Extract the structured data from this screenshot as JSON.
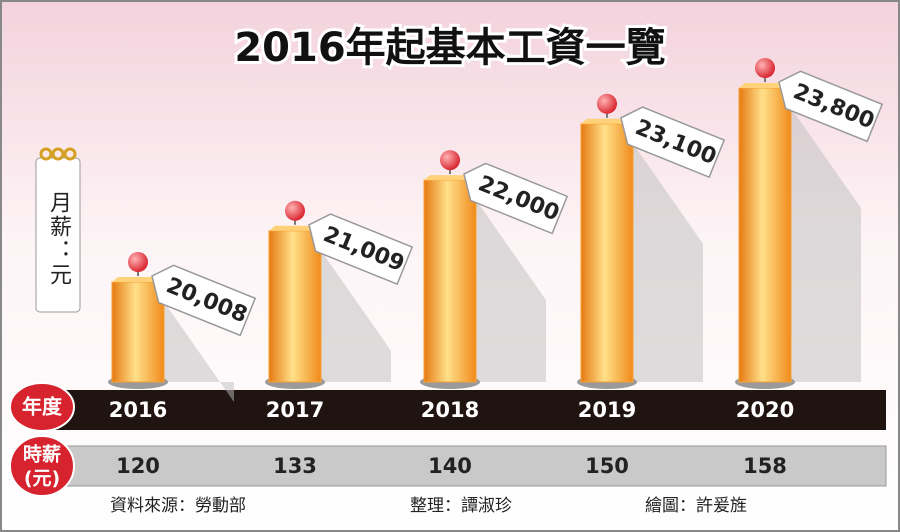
{
  "chart_data": {
    "type": "bar",
    "title": "2016年起基本工資一覽",
    "y_label": "月薪：元",
    "category_label": "年度",
    "categories": [
      "2016",
      "2017",
      "2018",
      "2019",
      "2020"
    ],
    "values": [
      20008,
      21009,
      22000,
      23100,
      23800
    ],
    "value_labels": [
      "20,008",
      "21,009",
      "22,000",
      "23,100",
      "23,800"
    ],
    "color": "#f7a033",
    "hourly": {
      "label_lines": [
        "時薪",
        "(元)"
      ],
      "values": [
        120,
        133,
        140,
        150,
        158
      ]
    },
    "credits": [
      "資料來源：勞動部",
      "整理：譚淑珍",
      "繪圖：許爰旌"
    ]
  }
}
